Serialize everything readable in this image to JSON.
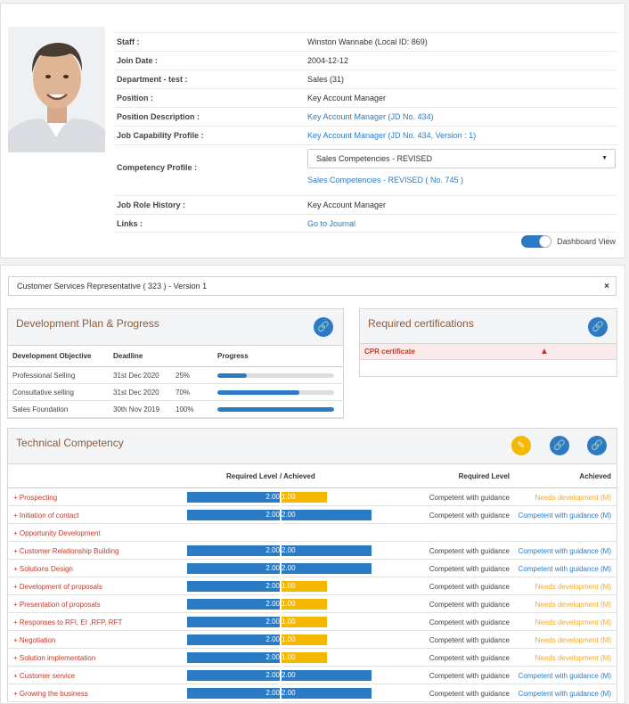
{
  "profile": {
    "fields": [
      {
        "label": "Staff :",
        "value": "Winston Wannabe (Local ID: 869)"
      },
      {
        "label": "Join Date :",
        "value": "2004-12-12"
      },
      {
        "label": "Department - test :",
        "value": "Sales (31)"
      },
      {
        "label": "Position :",
        "value": "Key Account Manager"
      },
      {
        "label": "Position Description :",
        "value": "Key Account Manager (JD No. 434)"
      },
      {
        "label": "Job Capability Profile :",
        "value": "Key Account Manager (JD No. 434, Version : 1)"
      }
    ],
    "competency_profile": {
      "label": "Competency Profile :",
      "selected": "Sales Competencies - REVISED",
      "link": "Sales Competencies - REVISED ( No. 745 )"
    },
    "job_role_history": {
      "label": "Job Role History :",
      "value": "Key Account Manager"
    },
    "links": {
      "label": "Links :",
      "value": "Go to Journal"
    },
    "dashboard_view_label": "Dashboard View"
  },
  "selector": {
    "value": "Customer Services Representative ( 323 ) - Version 1",
    "close": "×"
  },
  "dev_plan": {
    "title": "Development Plan & Progress",
    "headers": [
      "Development Objective",
      "Deadline",
      "Progress"
    ],
    "rows": [
      {
        "objective": "Professional Selling",
        "deadline": "31st Dec 2020",
        "percent": "25%",
        "progress": 0.25
      },
      {
        "objective": "Consultative selling",
        "deadline": "31st Dec 2020",
        "percent": "70%",
        "progress": 0.7
      },
      {
        "objective": "Sales Foundation",
        "deadline": "30th Nov 2019",
        "percent": "100%",
        "progress": 1.0
      }
    ]
  },
  "certifications": {
    "title": "Required certifications",
    "rows": [
      {
        "name": "CPR certificate"
      }
    ]
  },
  "technical": {
    "title": "Technical Competency",
    "headers": {
      "level": "Required Level",
      "achieved_sep": "/ Achieved",
      "req_text": "Required Level",
      "ach_text": "Achieved"
    },
    "rows": [
      {
        "name": "+ Prospecting",
        "req": "2.00",
        "ach": "1.00",
        "ach_value": 1,
        "req_text": "Competent with guidance",
        "ach_text": "Needs development (M)",
        "status": "dev"
      },
      {
        "name": "+ Initiation of contact",
        "req": "2.00",
        "ach": "2.00",
        "ach_value": 2,
        "req_text": "Competent with guidance",
        "ach_text": "Competent with guidance (M)",
        "status": "ok"
      },
      {
        "name": "+ Opportunity Development",
        "req": "",
        "ach": "",
        "ach_value": 0,
        "req_text": "",
        "ach_text": "",
        "status": "none"
      },
      {
        "name": "+ Customer Relationship Building",
        "req": "2.00",
        "ach": "2.00",
        "ach_value": 2,
        "req_text": "Competent with guidance",
        "ach_text": "Competent with guidance (M)",
        "status": "ok"
      },
      {
        "name": "+ Solutions Design",
        "req": "2.00",
        "ach": "2.00",
        "ach_value": 2,
        "req_text": "Competent with guidance",
        "ach_text": "Competent with guidance (M)",
        "status": "ok"
      },
      {
        "name": "+ Development of proposals",
        "req": "2.00",
        "ach": "1.00",
        "ach_value": 1,
        "req_text": "Competent with guidance",
        "ach_text": "Needs development (M)",
        "status": "dev"
      },
      {
        "name": "+ Presentation of proposals",
        "req": "2.00",
        "ach": "1.00",
        "ach_value": 1,
        "req_text": "Competent with guidance",
        "ach_text": "Needs development (M)",
        "status": "dev"
      },
      {
        "name": "+ Responses to RFI, EI ,RFP, RFT",
        "req": "2.00",
        "ach": "1.00",
        "ach_value": 1,
        "req_text": "Competent with guidance",
        "ach_text": "Needs development (M)",
        "status": "dev"
      },
      {
        "name": "+ Negotiation",
        "req": "2.00",
        "ach": "1.00",
        "ach_value": 1,
        "req_text": "Competent with guidance",
        "ach_text": "Needs development (M)",
        "status": "dev"
      },
      {
        "name": "+ Solution implementation",
        "req": "2.00",
        "ach": "1.00",
        "ach_value": 1,
        "req_text": "Competent with guidance",
        "ach_text": "Needs development (M)",
        "status": "dev"
      },
      {
        "name": "+ Customer service",
        "req": "2.00",
        "ach": "2.00",
        "ach_value": 2,
        "req_text": "Competent with guidance",
        "ach_text": "Competent with guidance (M)",
        "status": "ok"
      },
      {
        "name": "+ Growing the business",
        "req": "2.00",
        "ach": "2.00",
        "ach_value": 2,
        "req_text": "Competent with guidance",
        "ach_text": "Competent with guidance (M)",
        "status": "ok"
      }
    ]
  },
  "colors": {
    "accent": "#2b7bc4",
    "achieved_low": "#f5b800",
    "needs_dev_text": "#f0a830",
    "competent_text": "#2b7bc4",
    "name_red": "#c0392b"
  }
}
